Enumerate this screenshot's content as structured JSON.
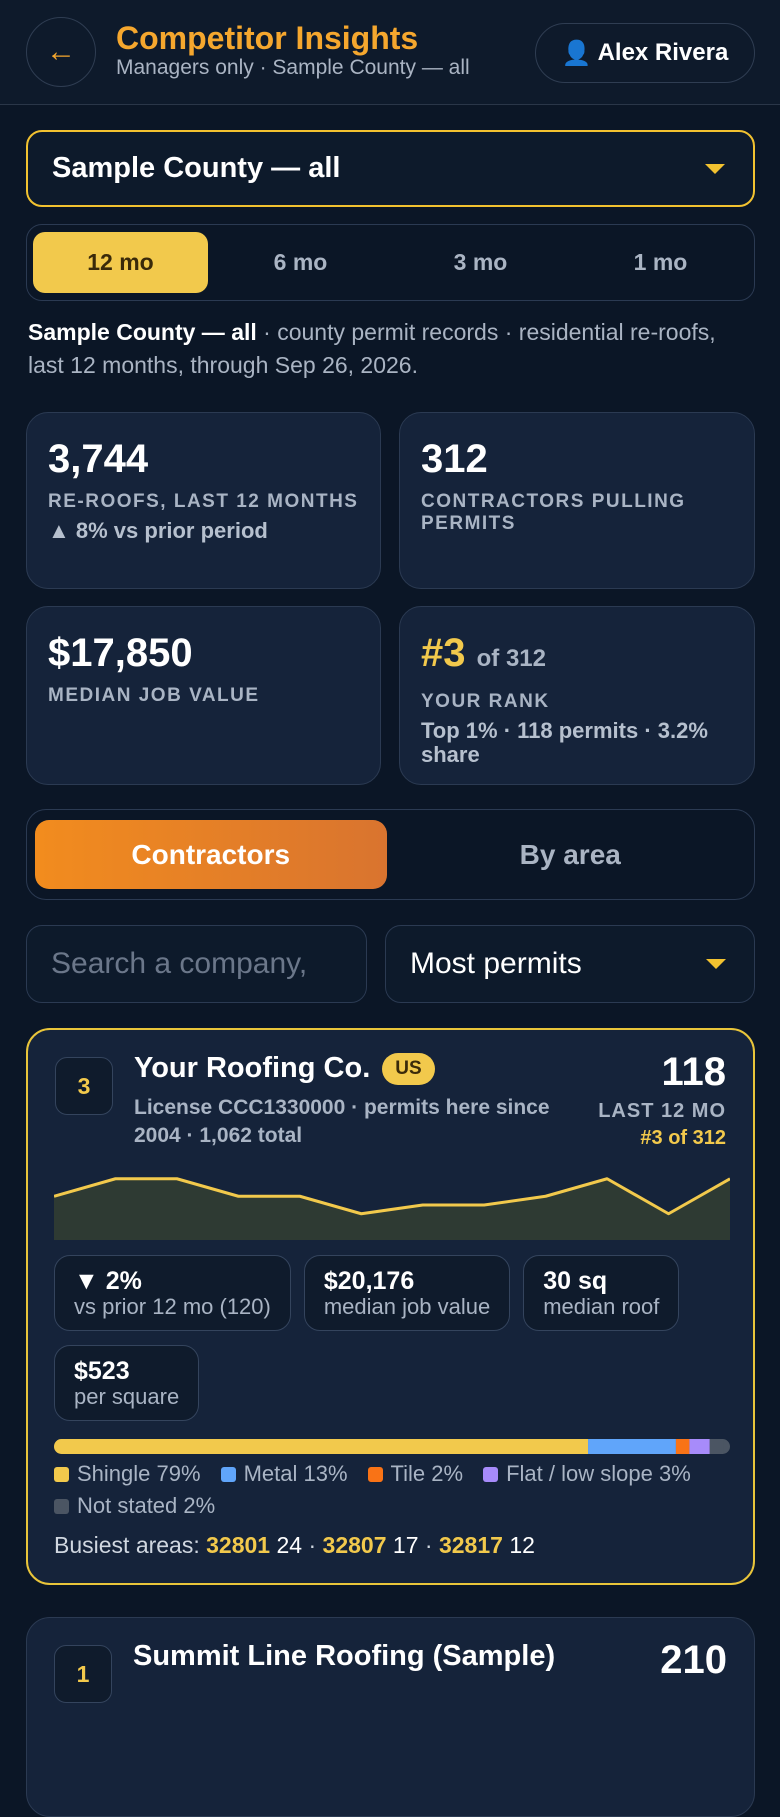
{
  "header": {
    "back_icon": "←",
    "title": "Competitor Insights",
    "subtitle": "Managers only · Sample County — all",
    "user_icon": "👤",
    "user": "Alex Rivera"
  },
  "county_select": "Sample County — all",
  "period_tabs": [
    "12 mo",
    "6 mo",
    "3 mo",
    "1 mo"
  ],
  "summary": {
    "bold": "Sample County — all",
    "text": " · county permit records · residential re-roofs, last 12 months, through Sep 26, 2026."
  },
  "stats": [
    {
      "value": "3,744",
      "label": "RE-ROOFS, LAST 12 MONTHS",
      "note": "▲ 8% vs prior period"
    },
    {
      "value": "312",
      "label": "CONTRACTORS PULLING PERMITS"
    },
    {
      "value": "$17,850",
      "label": "MEDIAN JOB VALUE"
    },
    {
      "value": "#3",
      "suffix": "of 312",
      "label": "YOUR RANK",
      "note": "Top 1% · 118 permits · 3.2% share"
    }
  ],
  "view_tabs": [
    "Contractors",
    "By area"
  ],
  "search_placeholder": "Search a company,",
  "sort": "Most permits",
  "contractors": [
    {
      "rank": "3",
      "name": "Your Roofing Co.",
      "badge": "US",
      "details": "License CCC1330000 · permits here since 2004 · 1,062 total",
      "count": "118",
      "period": "LAST 12 MO",
      "position": "#3 of 312",
      "sparkline": {
        "values": [
          9,
          11,
          11,
          9,
          9,
          7,
          8,
          8,
          9,
          11,
          7,
          11
        ],
        "ylim": [
          4,
          12
        ],
        "color": "#f2c94c"
      },
      "metrics": [
        {
          "value": "▼ 2%",
          "label": "vs prior 12 mo (120)"
        },
        {
          "value": "$20,176",
          "label": "median job value"
        },
        {
          "value": "30 sq",
          "label": "median roof"
        },
        {
          "value": "$523",
          "label": "per square"
        }
      ],
      "materials": [
        {
          "name": "Shingle",
          "value": 79,
          "value_label": "79%",
          "color": "#f2c94c"
        },
        {
          "name": "Metal",
          "value": 13,
          "value_label": "13%",
          "color": "#60a5fa"
        },
        {
          "name": "Tile",
          "value": 2,
          "value_label": "2%",
          "color": "#f97316"
        },
        {
          "name": "Flat / low slope",
          "value": 3,
          "value_label": "3%",
          "color": "#a78bfa"
        },
        {
          "name": "Not stated",
          "value": 2,
          "value_label": "2%",
          "color": "#4b5563"
        }
      ],
      "busiest_label": "Busiest areas:",
      "separator": "·",
      "areas": [
        {
          "zip": "32801",
          "count": "24"
        },
        {
          "zip": "32807",
          "count": "17"
        },
        {
          "zip": "32817",
          "count": "12"
        }
      ]
    },
    {
      "rank": "1",
      "name": "Summit Line Roofing (Sample)",
      "count": "210"
    }
  ]
}
